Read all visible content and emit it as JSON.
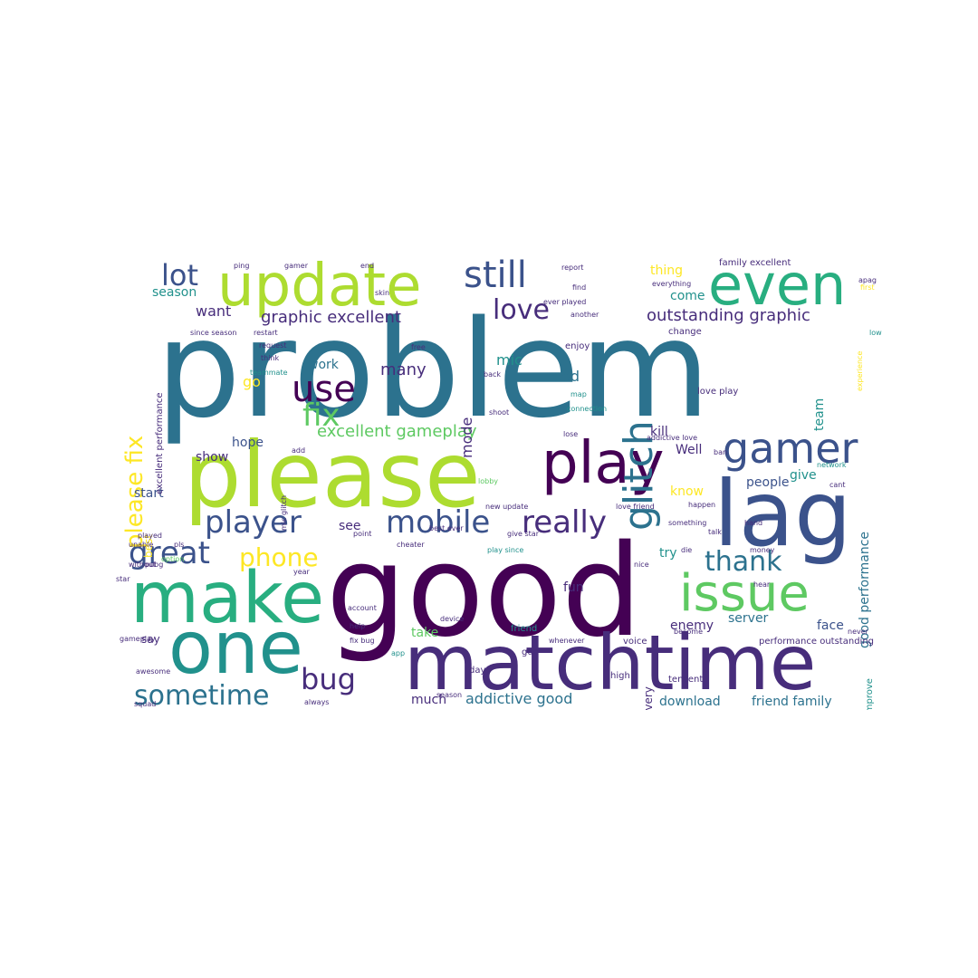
{
  "palette": [
    "#440154",
    "#472d7b",
    "#3b528b",
    "#2c728e",
    "#21918c",
    "#28ae80",
    "#5ec962",
    "#addc30",
    "#fde725"
  ],
  "words": [
    {
      "text": "problem",
      "color": "#2c728e"
    },
    {
      "text": "good",
      "color": "#440154"
    },
    {
      "text": "please",
      "color": "#addc30"
    },
    {
      "text": "matchtime",
      "color": "#472d7b"
    },
    {
      "text": "lag",
      "color": "#3b528b"
    },
    {
      "text": "make",
      "color": "#28ae80"
    },
    {
      "text": "one",
      "color": "#21918c"
    },
    {
      "text": "update",
      "color": "#addc30"
    },
    {
      "text": "even",
      "color": "#28ae80"
    },
    {
      "text": "play",
      "color": "#440154"
    },
    {
      "text": "gamer",
      "color": "#3b528b"
    },
    {
      "text": "issue",
      "color": "#5ec962"
    },
    {
      "text": "player",
      "color": "#3b528b"
    },
    {
      "text": "mobile",
      "color": "#3b528b"
    },
    {
      "text": "really",
      "color": "#472d7b"
    },
    {
      "text": "great",
      "color": "#3b528b"
    },
    {
      "text": "glitch",
      "color": "#2c728e"
    },
    {
      "text": "still",
      "color": "#3b528b"
    },
    {
      "text": "please fix",
      "color": "#fde725"
    },
    {
      "text": "lot",
      "color": "#3b528b"
    },
    {
      "text": "use",
      "color": "#440154"
    },
    {
      "text": "fix",
      "color": "#5ec962"
    },
    {
      "text": "love",
      "color": "#472d7b"
    },
    {
      "text": "sometime",
      "color": "#2c728e"
    },
    {
      "text": "bug",
      "color": "#472d7b"
    },
    {
      "text": "thank",
      "color": "#2c728e"
    },
    {
      "text": "phone",
      "color": "#fde725"
    },
    {
      "text": "graphic excellent",
      "color": "#472d7b"
    },
    {
      "text": "outstanding graphic",
      "color": "#472d7b"
    },
    {
      "text": "excellent gameplay",
      "color": "#5ec962"
    },
    {
      "text": "addictive good",
      "color": "#2c728e"
    },
    {
      "text": "good performance",
      "color": "#2c728e"
    },
    {
      "text": "many",
      "color": "#472d7b"
    },
    {
      "text": "need",
      "color": "#2c728e"
    },
    {
      "text": "mode",
      "color": "#472d7b"
    },
    {
      "text": "mic",
      "color": "#21918c"
    },
    {
      "text": "work",
      "color": "#2c728e"
    },
    {
      "text": "go",
      "color": "#fde725"
    },
    {
      "text": "want",
      "color": "#472d7b"
    },
    {
      "text": "season",
      "color": "#21918c"
    },
    {
      "text": "hope",
      "color": "#3b528b"
    },
    {
      "text": "show",
      "color": "#472d7b"
    },
    {
      "text": "start",
      "color": "#3b528b"
    },
    {
      "text": "kill",
      "color": "#472d7b"
    },
    {
      "text": "Well",
      "color": "#472d7b"
    },
    {
      "text": "people",
      "color": "#3b528b"
    },
    {
      "text": "give",
      "color": "#21918c"
    },
    {
      "text": "know",
      "color": "#fde725"
    },
    {
      "text": "try",
      "color": "#21918c"
    },
    {
      "text": "fun",
      "color": "#472d7b"
    },
    {
      "text": "face",
      "color": "#3b528b"
    },
    {
      "text": "server",
      "color": "#2c728e"
    },
    {
      "text": "enemy",
      "color": "#472d7b"
    },
    {
      "text": "take",
      "color": "#5ec962"
    },
    {
      "text": "much",
      "color": "#472d7b"
    },
    {
      "text": "download",
      "color": "#2c728e"
    },
    {
      "text": "friend family",
      "color": "#2c728e"
    },
    {
      "text": "say",
      "color": "#472d7b"
    },
    {
      "text": "see",
      "color": "#472d7b"
    },
    {
      "text": "thing",
      "color": "#fde725"
    },
    {
      "text": "come",
      "color": "#21918c"
    },
    {
      "text": "team",
      "color": "#21918c"
    },
    {
      "text": "best",
      "color": "#fde725"
    },
    {
      "text": "family excellent",
      "color": "#472d7b"
    },
    {
      "text": "excellent performance",
      "color": "#472d7b"
    },
    {
      "text": "every",
      "color": "#472d7b"
    },
    {
      "text": "high",
      "color": "#472d7b"
    },
    {
      "text": "tencent",
      "color": "#472d7b"
    },
    {
      "text": "improve",
      "color": "#21918c"
    },
    {
      "text": "performance outstanding",
      "color": "#472d7b"
    },
    {
      "text": "voice",
      "color": "#472d7b"
    },
    {
      "text": "friend",
      "color": "#21918c"
    },
    {
      "text": "gun",
      "color": "#472d7b"
    },
    {
      "text": "day",
      "color": "#472d7b"
    },
    {
      "text": "app",
      "color": "#21918c"
    },
    {
      "text": "help",
      "color": "#472d7b"
    },
    {
      "text": "fix bug",
      "color": "#472d7b"
    },
    {
      "text": "account",
      "color": "#472d7b"
    },
    {
      "text": "point",
      "color": "#472d7b"
    },
    {
      "text": "awesome",
      "color": "#472d7b"
    },
    {
      "text": "gameplay",
      "color": "#472d7b"
    },
    {
      "text": "always",
      "color": "#472d7b"
    },
    {
      "text": "love play",
      "color": "#472d7b"
    },
    {
      "text": "enjoy",
      "color": "#472d7b"
    },
    {
      "text": "change",
      "color": "#472d7b"
    },
    {
      "text": "everything",
      "color": "#472d7b"
    },
    {
      "text": "find",
      "color": "#472d7b"
    },
    {
      "text": "report",
      "color": "#472d7b"
    },
    {
      "text": "another",
      "color": "#472d7b"
    },
    {
      "text": "map",
      "color": "#21918c"
    },
    {
      "text": "connection",
      "color": "#21918c"
    },
    {
      "text": "lose",
      "color": "#472d7b"
    },
    {
      "text": "addictive love",
      "color": "#472d7b"
    },
    {
      "text": "love friend",
      "color": "#472d7b"
    },
    {
      "text": "happen",
      "color": "#472d7b"
    },
    {
      "text": "something",
      "color": "#472d7b"
    },
    {
      "text": "talk",
      "color": "#472d7b"
    },
    {
      "text": "money",
      "color": "#472d7b"
    },
    {
      "text": "become",
      "color": "#472d7b"
    },
    {
      "text": "whenever",
      "color": "#472d7b"
    },
    {
      "text": "new update",
      "color": "#472d7b"
    },
    {
      "text": "best ever",
      "color": "#472d7b"
    },
    {
      "text": "cheater",
      "color": "#472d7b"
    },
    {
      "text": "give star",
      "color": "#472d7b"
    },
    {
      "text": "play since",
      "color": "#21918c"
    },
    {
      "text": "ever played",
      "color": "#472d7b"
    },
    {
      "text": "device",
      "color": "#472d7b"
    },
    {
      "text": "season",
      "color": "#472d7b"
    },
    {
      "text": "squad",
      "color": "#472d7b"
    },
    {
      "text": "request",
      "color": "#472d7b"
    },
    {
      "text": "restart",
      "color": "#472d7b"
    },
    {
      "text": "think",
      "color": "#472d7b"
    },
    {
      "text": "teammate",
      "color": "#21918c"
    },
    {
      "text": "ping",
      "color": "#472d7b"
    },
    {
      "text": "gamer",
      "color": "#472d7b"
    },
    {
      "text": "end",
      "color": "#472d7b"
    },
    {
      "text": "skin",
      "color": "#472d7b"
    },
    {
      "text": "free",
      "color": "#472d7b"
    },
    {
      "text": "since season",
      "color": "#472d7b"
    },
    {
      "text": "mic glitch",
      "color": "#472d7b"
    },
    {
      "text": "add",
      "color": "#472d7b"
    },
    {
      "text": "year",
      "color": "#472d7b"
    },
    {
      "text": "back",
      "color": "#472d7b"
    },
    {
      "text": "shoot",
      "color": "#472d7b"
    },
    {
      "text": "lobby",
      "color": "#5ec962"
    },
    {
      "text": "die",
      "color": "#472d7b"
    },
    {
      "text": "nice",
      "color": "#472d7b"
    },
    {
      "text": "experience",
      "color": "#fde725"
    },
    {
      "text": "first",
      "color": "#fde725"
    },
    {
      "text": "low",
      "color": "#21918c"
    },
    {
      "text": "cant",
      "color": "#472d7b"
    },
    {
      "text": "hand",
      "color": "#472d7b"
    },
    {
      "text": "ban",
      "color": "#472d7b"
    },
    {
      "text": "played",
      "color": "#472d7b"
    },
    {
      "text": "star",
      "color": "#472d7b"
    },
    {
      "text": "pls",
      "color": "#472d7b"
    },
    {
      "text": "without",
      "color": "#472d7b"
    },
    {
      "text": "unable",
      "color": "#472d7b"
    },
    {
      "text": "option",
      "color": "#5ec962"
    },
    {
      "text": "network",
      "color": "#21918c"
    },
    {
      "text": "apag",
      "color": "#472d7b"
    },
    {
      "text": "never",
      "color": "#472d7b"
    },
    {
      "text": "hear",
      "color": "#472d7b"
    },
    {
      "text": "pubg",
      "color": "#472d7b"
    }
  ]
}
